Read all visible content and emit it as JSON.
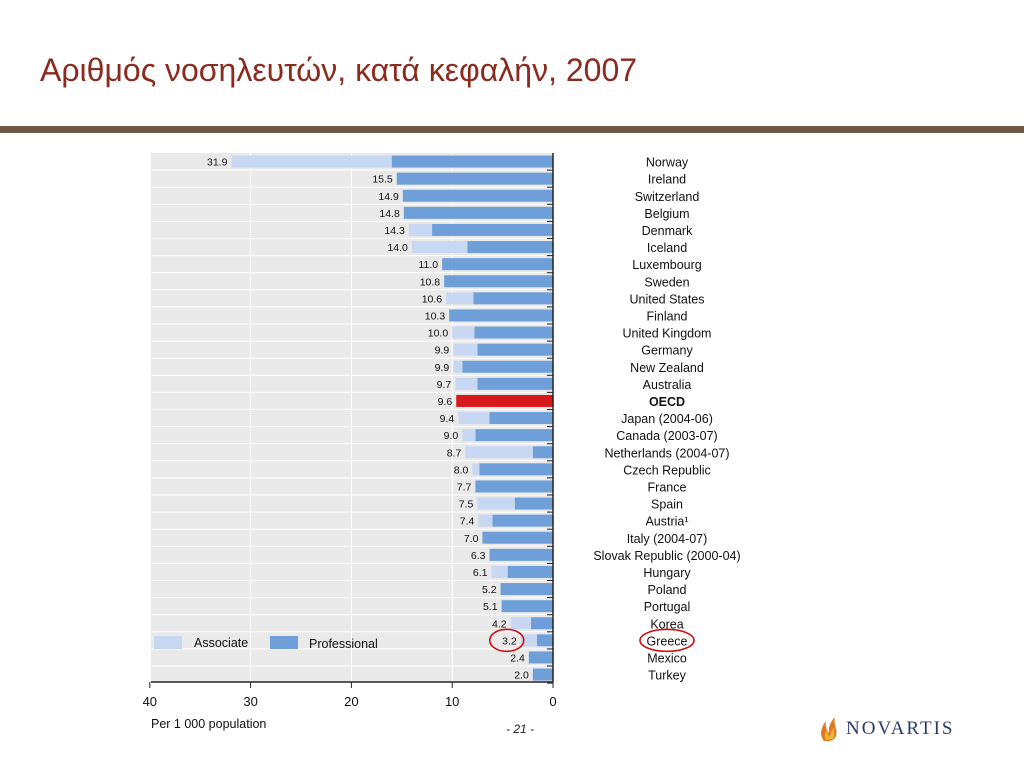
{
  "slide": {
    "title": "Αριθμός νοσηλευτών, κατά κεφαλήν, 2007",
    "page_number": "- 21 -",
    "logo_text": "NOVARTIS"
  },
  "colors": {
    "associate": "#c9d8f2",
    "professional": "#6f9fd8",
    "highlight": "#d7191c",
    "circle": "#cc1111",
    "title": "#8b2a1e",
    "rule": "#6e5a47",
    "logo_text": "#2b3a6b",
    "logo_flame": "#e07b1f"
  },
  "chart_data": {
    "type": "bar",
    "orientation": "horizontal-reversed",
    "xlabel": "Per 1 000 population",
    "xlim": [
      40,
      0
    ],
    "xticks": [
      "40",
      "30",
      "20",
      "10",
      "0"
    ],
    "grid": true,
    "legend_position": "bottom-left",
    "highlight_category": "OECD",
    "circled_category": "Greece",
    "categories": [
      "Norway",
      "Ireland",
      "Switzerland",
      "Belgium",
      "Denmark",
      "Iceland",
      "Luxembourg",
      "Sweden",
      "United States",
      "Finland",
      "United Kingdom",
      "Germany",
      "New Zealand",
      "Australia",
      "OECD",
      "Japan (2004-06)",
      "Canada (2003-07)",
      "Netherlands (2004-07)",
      "Czech Republic",
      "France",
      "Spain",
      "Austria¹",
      "Italy (2004-07)",
      "Slovak Republic (2000-04)",
      "Hungary",
      "Poland",
      "Portugal",
      "Korea",
      "Greece",
      "Mexico",
      "Turkey"
    ],
    "totals": [
      "31.9",
      "15.5",
      "14.9",
      "14.8",
      "14.3",
      "14.0",
      "11.0",
      "10.8",
      "10.6",
      "10.3",
      "10.0",
      "9.9",
      "9.9",
      "9.7",
      "9.6",
      "9.4",
      "9.0",
      "8.7",
      "8.0",
      "7.7",
      "7.5",
      "7.4",
      "7.0",
      "6.3",
      "6.1",
      "5.2",
      "5.1",
      "4.2",
      "3.2",
      "2.4",
      "2.0"
    ],
    "series": [
      {
        "name": "Associate",
        "values": [
          15.9,
          0,
          0,
          0,
          2.3,
          5.5,
          0,
          0,
          2.7,
          0,
          2.2,
          2.4,
          0.9,
          2.2,
          0,
          3.1,
          1.3,
          6.7,
          0.7,
          0,
          3.7,
          1.4,
          0,
          0,
          1.6,
          0,
          0,
          2.0,
          1.6,
          0,
          0
        ]
      },
      {
        "name": "Professional",
        "values": [
          16.0,
          15.5,
          14.9,
          14.8,
          12.0,
          8.5,
          11.0,
          10.8,
          7.9,
          10.3,
          7.8,
          7.5,
          9.0,
          7.5,
          9.6,
          6.3,
          7.7,
          2.0,
          7.3,
          7.7,
          3.8,
          6.0,
          7.0,
          6.3,
          4.5,
          5.2,
          5.1,
          2.2,
          1.6,
          2.4,
          2.0
        ]
      }
    ]
  }
}
